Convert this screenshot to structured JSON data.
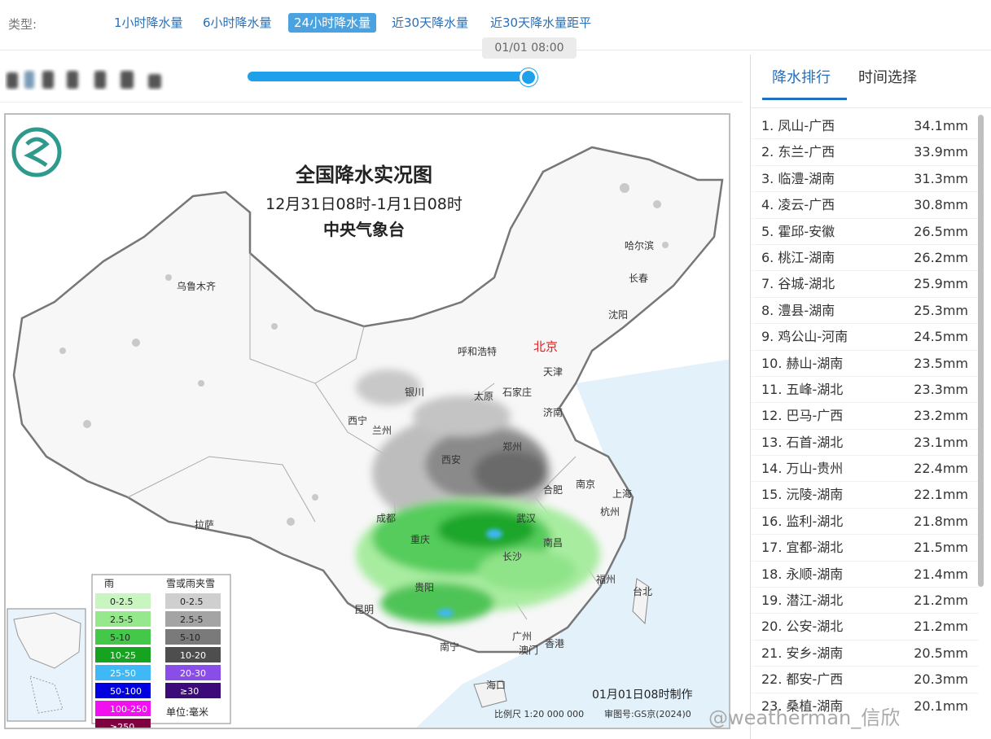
{
  "header": {
    "type_label": "类型:",
    "tabs": [
      {
        "label": "1小时降水量",
        "active": false
      },
      {
        "label": "6小时降水量",
        "active": false
      },
      {
        "label": "24小时降水量",
        "active": true
      },
      {
        "label": "近30天降水量",
        "active": false
      },
      {
        "label": "近30天降水量距平",
        "active": false
      }
    ],
    "slider_time": "01/01 08:00",
    "slider_value_percent": 100
  },
  "map": {
    "title": "全国降水实况图",
    "subtitle": "12月31日08时-1月1日08时",
    "agency": "中央气象台",
    "made_time": "01月01日08时制作",
    "scale": "比例尺 1:20 000 000",
    "review_no": "审图号:GS京(2024)0",
    "legend": {
      "rain_title": "雨",
      "snow_title": "雪或雨夹雪",
      "unit": "单位:毫米",
      "rain": [
        {
          "label": "0-2.5",
          "color": "#c8f5c0"
        },
        {
          "label": "2.5-5",
          "color": "#95e98c"
        },
        {
          "label": "5-10",
          "color": "#43c84a"
        },
        {
          "label": "10-25",
          "color": "#16a320"
        },
        {
          "label": "25-50",
          "color": "#3fb8f5"
        },
        {
          "label": "50-100",
          "color": "#0000e0"
        },
        {
          "label": "100-250",
          "color": "#f010f0"
        },
        {
          "label": "≥250",
          "color": "#800040"
        }
      ],
      "snow": [
        {
          "label": "0-2.5",
          "color": "#cfcfcf"
        },
        {
          "label": "2.5-5",
          "color": "#a4a4a4"
        },
        {
          "label": "5-10",
          "color": "#7a7a7a"
        },
        {
          "label": "10-20",
          "color": "#4e4e4e"
        },
        {
          "label": "20-30",
          "color": "#8a4ee8"
        },
        {
          "label": "≥30",
          "color": "#3d0a7a"
        }
      ]
    },
    "cities": [
      "北京",
      "天津",
      "哈尔滨",
      "长春",
      "沈阳",
      "乌鲁木齐",
      "呼和浩特",
      "石家庄",
      "太原",
      "银川",
      "济南",
      "西宁",
      "兰州",
      "郑州",
      "西安",
      "合肥",
      "南京",
      "上海",
      "成都",
      "武汉",
      "杭州",
      "重庆",
      "长沙",
      "南昌",
      "拉萨",
      "贵阳",
      "福州",
      "台北",
      "昆明",
      "广州",
      "南宁",
      "澳门",
      "香港",
      "海口"
    ]
  },
  "sidebar": {
    "tab_rank": "降水排行",
    "tab_time": "时间选择",
    "ranking": [
      {
        "name": "1. 凤山-广西",
        "value": "34.1mm"
      },
      {
        "name": "2. 东兰-广西",
        "value": "33.9mm"
      },
      {
        "name": "3. 临澧-湖南",
        "value": "31.3mm"
      },
      {
        "name": "4. 凌云-广西",
        "value": "30.8mm"
      },
      {
        "name": "5. 霍邱-安徽",
        "value": "26.5mm"
      },
      {
        "name": "6. 桃江-湖南",
        "value": "26.2mm"
      },
      {
        "name": "7. 谷城-湖北",
        "value": "25.9mm"
      },
      {
        "name": "8. 澧县-湖南",
        "value": "25.3mm"
      },
      {
        "name": "9. 鸡公山-河南",
        "value": "24.5mm"
      },
      {
        "name": "10. 赫山-湖南",
        "value": "23.5mm"
      },
      {
        "name": "11. 五峰-湖北",
        "value": "23.3mm"
      },
      {
        "name": "12. 巴马-广西",
        "value": "23.2mm"
      },
      {
        "name": "13. 石首-湖北",
        "value": "23.1mm"
      },
      {
        "name": "14. 万山-贵州",
        "value": "22.4mm"
      },
      {
        "name": "15. 沅陵-湖南",
        "value": "22.1mm"
      },
      {
        "name": "16. 监利-湖北",
        "value": "21.8mm"
      },
      {
        "name": "17. 宜都-湖北",
        "value": "21.5mm"
      },
      {
        "name": "18. 永顺-湖南",
        "value": "21.4mm"
      },
      {
        "name": "19. 潜江-湖北",
        "value": "21.2mm"
      },
      {
        "name": "20. 公安-湖北",
        "value": "21.2mm"
      },
      {
        "name": "21. 安乡-湖南",
        "value": "20.5mm"
      },
      {
        "name": "22. 都安-广西",
        "value": "20.3mm"
      },
      {
        "name": "23. 桑植-湖南",
        "value": "20.1mm"
      }
    ]
  },
  "watermark": "@weatherman_信欣"
}
